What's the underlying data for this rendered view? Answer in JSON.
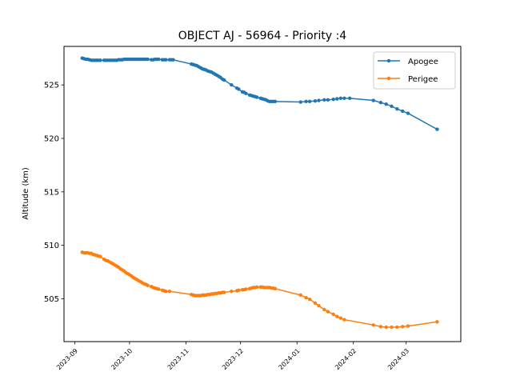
{
  "chart_data": {
    "type": "line",
    "title": "OBJECT AJ - 56964 - Priority :4",
    "xlabel": "",
    "ylabel": "Altitude (km)",
    "xlim": [
      "2023-08-26",
      "2024-03-31"
    ],
    "ylim": [
      501.0,
      528.6
    ],
    "yticks": [
      505,
      510,
      515,
      520,
      525
    ],
    "xticks": [
      "2023-09",
      "2023-10",
      "2023-11",
      "2023-12",
      "2024-01",
      "2024-02",
      "2024-03"
    ],
    "legend_position": "top-right",
    "grid": false,
    "series": [
      {
        "name": "Apogee",
        "color": "#1f77b4",
        "points": [
          [
            "2023-09-05",
            527.5
          ],
          [
            "2023-09-06",
            527.45
          ],
          [
            "2023-09-07",
            527.4
          ],
          [
            "2023-09-08",
            527.4
          ],
          [
            "2023-09-09",
            527.35
          ],
          [
            "2023-09-10",
            527.3
          ],
          [
            "2023-09-11",
            527.3
          ],
          [
            "2023-09-12",
            527.3
          ],
          [
            "2023-09-13",
            527.3
          ],
          [
            "2023-09-14",
            527.3
          ],
          [
            "2023-09-15",
            527.3
          ],
          [
            "2023-09-17",
            527.3
          ],
          [
            "2023-09-18",
            527.3
          ],
          [
            "2023-09-19",
            527.3
          ],
          [
            "2023-09-20",
            527.3
          ],
          [
            "2023-09-21",
            527.3
          ],
          [
            "2023-09-22",
            527.3
          ],
          [
            "2023-09-23",
            527.3
          ],
          [
            "2023-09-24",
            527.3
          ],
          [
            "2023-09-25",
            527.35
          ],
          [
            "2023-09-26",
            527.35
          ],
          [
            "2023-09-27",
            527.35
          ],
          [
            "2023-09-28",
            527.4
          ],
          [
            "2023-09-29",
            527.4
          ],
          [
            "2023-09-30",
            527.4
          ],
          [
            "2023-10-01",
            527.4
          ],
          [
            "2023-10-02",
            527.4
          ],
          [
            "2023-10-03",
            527.4
          ],
          [
            "2023-10-04",
            527.4
          ],
          [
            "2023-10-05",
            527.4
          ],
          [
            "2023-10-06",
            527.4
          ],
          [
            "2023-10-07",
            527.4
          ],
          [
            "2023-10-08",
            527.4
          ],
          [
            "2023-10-09",
            527.4
          ],
          [
            "2023-10-10",
            527.4
          ],
          [
            "2023-10-11",
            527.4
          ],
          [
            "2023-10-13",
            527.35
          ],
          [
            "2023-10-14",
            527.35
          ],
          [
            "2023-10-15",
            527.4
          ],
          [
            "2023-10-16",
            527.4
          ],
          [
            "2023-10-17",
            527.4
          ],
          [
            "2023-10-19",
            527.35
          ],
          [
            "2023-10-20",
            527.35
          ],
          [
            "2023-10-21",
            527.35
          ],
          [
            "2023-10-23",
            527.35
          ],
          [
            "2023-10-24",
            527.35
          ],
          [
            "2023-10-25",
            527.35
          ],
          [
            "2023-11-04",
            526.95
          ],
          [
            "2023-11-05",
            526.9
          ],
          [
            "2023-11-06",
            526.85
          ],
          [
            "2023-11-07",
            526.8
          ],
          [
            "2023-11-08",
            526.7
          ],
          [
            "2023-11-09",
            526.6
          ],
          [
            "2023-11-10",
            526.5
          ],
          [
            "2023-11-11",
            526.45
          ],
          [
            "2023-11-12",
            526.4
          ],
          [
            "2023-11-13",
            526.3
          ],
          [
            "2023-11-14",
            526.25
          ],
          [
            "2023-11-15",
            526.2
          ],
          [
            "2023-11-16",
            526.1
          ],
          [
            "2023-11-17",
            526.0
          ],
          [
            "2023-11-18",
            525.9
          ],
          [
            "2023-11-19",
            525.8
          ],
          [
            "2023-11-20",
            525.7
          ],
          [
            "2023-11-21",
            525.55
          ],
          [
            "2023-11-22",
            525.45
          ],
          [
            "2023-11-26",
            525.0
          ],
          [
            "2023-11-29",
            524.7
          ],
          [
            "2023-11-30",
            524.6
          ],
          [
            "2023-12-02",
            524.35
          ],
          [
            "2023-12-03",
            524.3
          ],
          [
            "2023-12-04",
            524.2
          ],
          [
            "2023-12-06",
            524.05
          ],
          [
            "2023-12-07",
            524.0
          ],
          [
            "2023-12-08",
            523.95
          ],
          [
            "2023-12-09",
            523.9
          ],
          [
            "2023-12-10",
            523.85
          ],
          [
            "2023-12-12",
            523.75
          ],
          [
            "2023-12-13",
            523.7
          ],
          [
            "2023-12-14",
            523.65
          ],
          [
            "2023-12-15",
            523.6
          ],
          [
            "2023-12-16",
            523.5
          ],
          [
            "2023-12-17",
            523.45
          ],
          [
            "2023-12-18",
            523.45
          ],
          [
            "2023-12-19",
            523.45
          ],
          [
            "2023-12-20",
            523.45
          ],
          [
            "2024-01-03",
            523.4
          ],
          [
            "2024-01-06",
            523.45
          ],
          [
            "2024-01-08",
            523.45
          ],
          [
            "2024-01-11",
            523.5
          ],
          [
            "2024-01-13",
            523.55
          ],
          [
            "2024-01-16",
            523.6
          ],
          [
            "2024-01-18",
            523.6
          ],
          [
            "2024-01-21",
            523.65
          ],
          [
            "2024-01-23",
            523.7
          ],
          [
            "2024-01-25",
            523.75
          ],
          [
            "2024-01-27",
            523.75
          ],
          [
            "2024-01-30",
            523.75
          ],
          [
            "2024-02-12",
            523.55
          ],
          [
            "2024-02-16",
            523.35
          ],
          [
            "2024-02-19",
            523.2
          ],
          [
            "2024-02-22",
            523.0
          ],
          [
            "2024-02-25",
            522.75
          ],
          [
            "2024-02-28",
            522.55
          ],
          [
            "2024-03-02",
            522.35
          ],
          [
            "2024-03-18",
            520.85
          ]
        ]
      },
      {
        "name": "Perigee",
        "color": "#ff7f0e",
        "points": [
          [
            "2023-09-05",
            509.35
          ],
          [
            "2023-09-06",
            509.3
          ],
          [
            "2023-09-07",
            509.3
          ],
          [
            "2023-09-08",
            509.3
          ],
          [
            "2023-09-09",
            509.25
          ],
          [
            "2023-09-10",
            509.25
          ],
          [
            "2023-09-11",
            509.15
          ],
          [
            "2023-09-12",
            509.1
          ],
          [
            "2023-09-13",
            509.05
          ],
          [
            "2023-09-14",
            509.0
          ],
          [
            "2023-09-15",
            508.95
          ],
          [
            "2023-09-17",
            508.7
          ],
          [
            "2023-09-18",
            508.6
          ],
          [
            "2023-09-19",
            508.55
          ],
          [
            "2023-09-20",
            508.45
          ],
          [
            "2023-09-21",
            508.35
          ],
          [
            "2023-09-22",
            508.25
          ],
          [
            "2023-09-23",
            508.15
          ],
          [
            "2023-09-24",
            508.05
          ],
          [
            "2023-09-25",
            507.95
          ],
          [
            "2023-09-26",
            507.8
          ],
          [
            "2023-09-27",
            507.7
          ],
          [
            "2023-09-28",
            507.6
          ],
          [
            "2023-09-29",
            507.45
          ],
          [
            "2023-09-30",
            507.35
          ],
          [
            "2023-10-01",
            507.25
          ],
          [
            "2023-10-02",
            507.15
          ],
          [
            "2023-10-03",
            507.0
          ],
          [
            "2023-10-04",
            506.9
          ],
          [
            "2023-10-05",
            506.8
          ],
          [
            "2023-10-06",
            506.7
          ],
          [
            "2023-10-07",
            506.6
          ],
          [
            "2023-10-08",
            506.5
          ],
          [
            "2023-10-09",
            506.4
          ],
          [
            "2023-10-10",
            506.35
          ],
          [
            "2023-10-11",
            506.25
          ],
          [
            "2023-10-13",
            506.15
          ],
          [
            "2023-10-14",
            506.05
          ],
          [
            "2023-10-15",
            506.0
          ],
          [
            "2023-10-16",
            505.95
          ],
          [
            "2023-10-17",
            505.9
          ],
          [
            "2023-10-19",
            505.8
          ],
          [
            "2023-10-20",
            505.75
          ],
          [
            "2023-10-21",
            505.7
          ],
          [
            "2023-10-23",
            505.7
          ],
          [
            "2023-11-04",
            505.4
          ],
          [
            "2023-11-05",
            505.35
          ],
          [
            "2023-11-06",
            505.3
          ],
          [
            "2023-11-07",
            505.3
          ],
          [
            "2023-11-08",
            505.3
          ],
          [
            "2023-11-09",
            505.3
          ],
          [
            "2023-11-10",
            505.35
          ],
          [
            "2023-11-11",
            505.35
          ],
          [
            "2023-11-12",
            505.35
          ],
          [
            "2023-11-13",
            505.4
          ],
          [
            "2023-11-14",
            505.4
          ],
          [
            "2023-11-15",
            505.45
          ],
          [
            "2023-11-16",
            505.45
          ],
          [
            "2023-11-17",
            505.5
          ],
          [
            "2023-11-18",
            505.5
          ],
          [
            "2023-11-19",
            505.55
          ],
          [
            "2023-11-20",
            505.55
          ],
          [
            "2023-11-21",
            505.6
          ],
          [
            "2023-11-22",
            505.6
          ],
          [
            "2023-11-26",
            505.7
          ],
          [
            "2023-11-29",
            505.75
          ],
          [
            "2023-11-30",
            505.8
          ],
          [
            "2023-12-02",
            505.85
          ],
          [
            "2023-12-03",
            505.85
          ],
          [
            "2023-12-04",
            505.9
          ],
          [
            "2023-12-06",
            505.95
          ],
          [
            "2023-12-07",
            506.0
          ],
          [
            "2023-12-08",
            506.05
          ],
          [
            "2023-12-09",
            506.05
          ],
          [
            "2023-12-10",
            506.1
          ],
          [
            "2023-12-12",
            506.1
          ],
          [
            "2023-12-13",
            506.1
          ],
          [
            "2023-12-14",
            506.05
          ],
          [
            "2023-12-15",
            506.05
          ],
          [
            "2023-12-16",
            506.05
          ],
          [
            "2023-12-17",
            506.05
          ],
          [
            "2023-12-18",
            506.0
          ],
          [
            "2023-12-19",
            506.0
          ],
          [
            "2023-12-20",
            505.95
          ],
          [
            "2024-01-03",
            505.35
          ],
          [
            "2024-01-06",
            505.1
          ],
          [
            "2024-01-08",
            504.95
          ],
          [
            "2024-01-11",
            504.6
          ],
          [
            "2024-01-13",
            504.35
          ],
          [
            "2024-01-16",
            504.0
          ],
          [
            "2024-01-18",
            503.8
          ],
          [
            "2024-01-21",
            503.55
          ],
          [
            "2024-01-23",
            503.35
          ],
          [
            "2024-01-25",
            503.2
          ],
          [
            "2024-01-27",
            503.05
          ],
          [
            "2024-02-12",
            502.55
          ],
          [
            "2024-02-16",
            502.4
          ],
          [
            "2024-02-19",
            502.35
          ],
          [
            "2024-02-22",
            502.35
          ],
          [
            "2024-02-25",
            502.35
          ],
          [
            "2024-02-28",
            502.4
          ],
          [
            "2024-03-02",
            502.45
          ],
          [
            "2024-03-18",
            502.85
          ]
        ]
      }
    ]
  }
}
